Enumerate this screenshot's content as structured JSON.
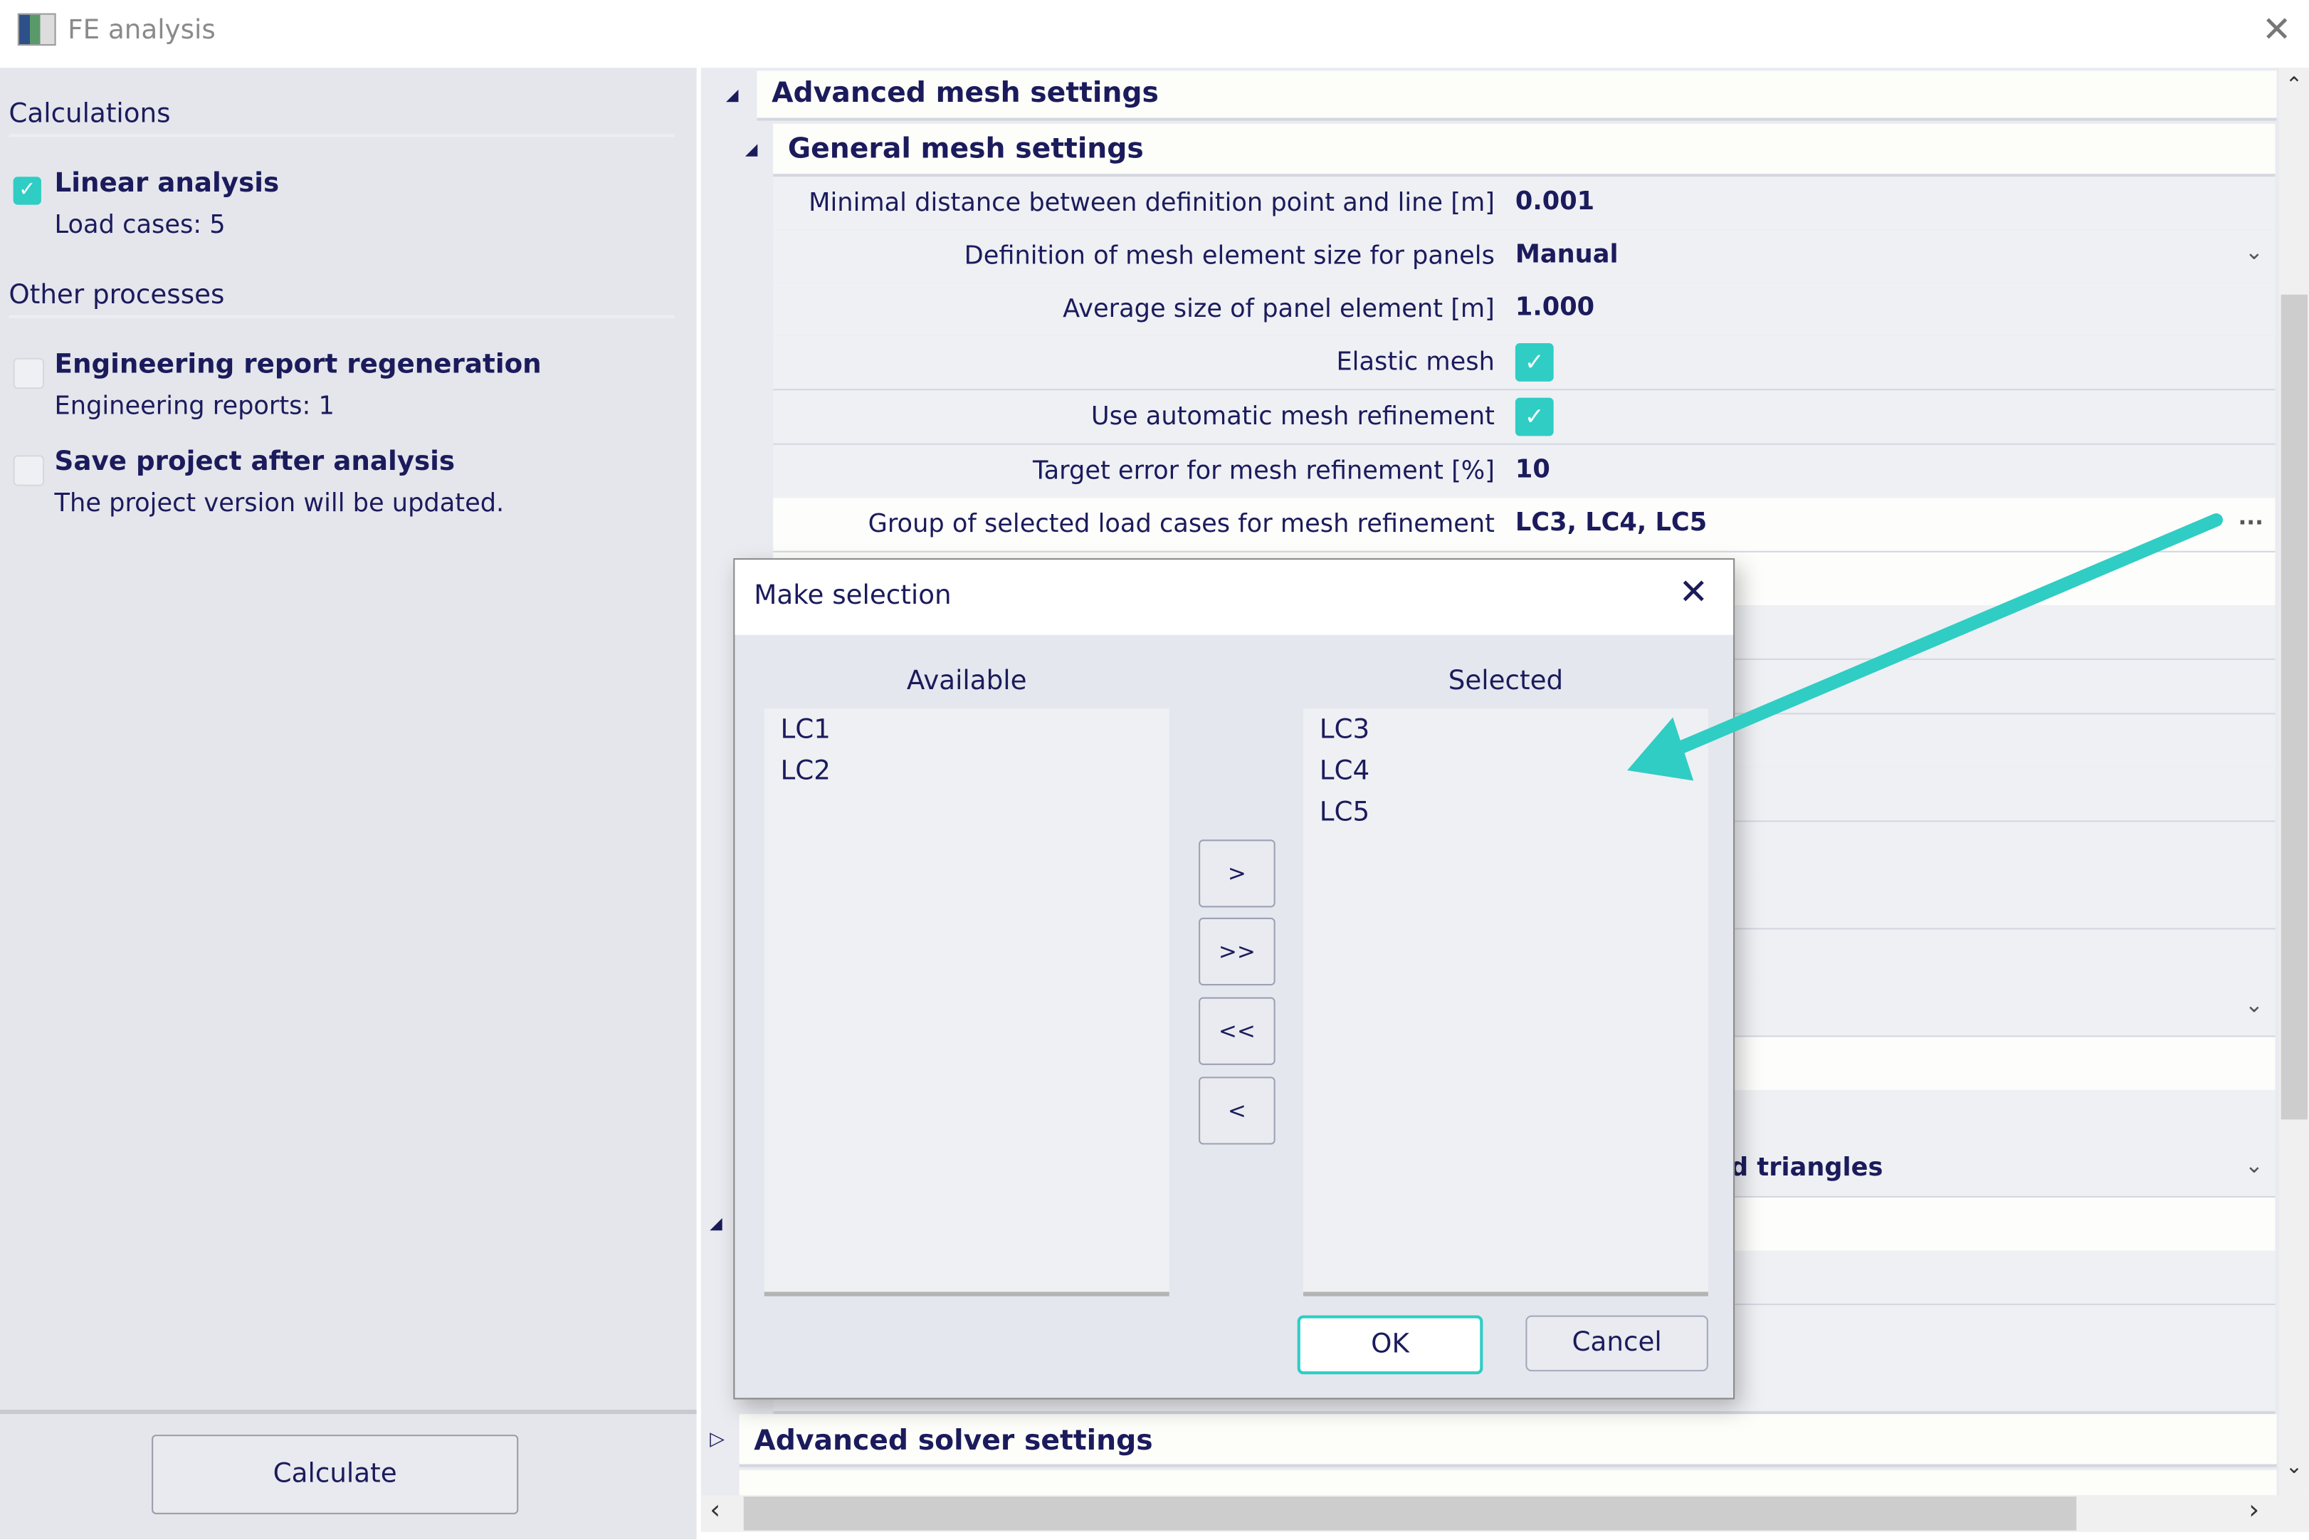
{
  "window": {
    "title": "FE analysis"
  },
  "left": {
    "calculations_heading": "Calculations",
    "linear_analysis": {
      "label": "Linear analysis",
      "sub": "Load cases: 5",
      "checked": true
    },
    "other_heading": "Other processes",
    "eng_report": {
      "label": "Engineering report regeneration",
      "sub": "Engineering reports: 1",
      "checked": false
    },
    "save_project": {
      "label": "Save project after analysis",
      "sub": "The project version will be updated.",
      "checked": false
    },
    "calculate_label": "Calculate"
  },
  "grid": {
    "advanced_mesh": "Advanced mesh settings",
    "general_mesh": "General mesh settings",
    "rows": [
      {
        "label": "Minimal distance between definition point and line [m]",
        "value": "0.001"
      },
      {
        "label": "Definition of mesh element size for panels",
        "value": "Manual"
      },
      {
        "label": "Average size of panel element [m]",
        "value": "1.000"
      },
      {
        "label": "Elastic mesh",
        "checked": true
      },
      {
        "label": "Use automatic mesh refinement",
        "checked": true
      },
      {
        "label": "Target error for mesh refinement [%]",
        "value": "10"
      },
      {
        "label": "Group of selected load cases for mesh refinement",
        "value": "LC3, LC4, LC5",
        "button": "..."
      }
    ],
    "hidden_value": "d triangles",
    "advanced_solver": "Advanced solver settings"
  },
  "dialog": {
    "title": "Make selection",
    "available_label": "Available",
    "selected_label": "Selected",
    "available": [
      "LC1",
      "LC2"
    ],
    "selected": [
      "LC3",
      "LC4",
      "LC5"
    ],
    "move_buttons": [
      ">",
      ">>",
      "<<",
      "<"
    ],
    "ok": "OK",
    "cancel": "Cancel"
  },
  "colors": {
    "accent": "#2fcdc4",
    "text": "#1b1b5c"
  }
}
